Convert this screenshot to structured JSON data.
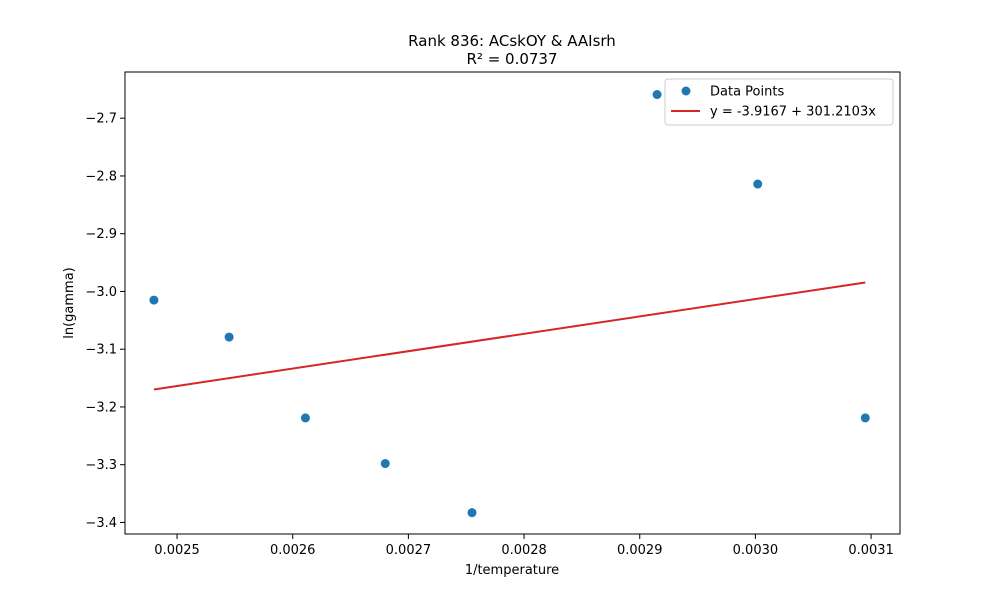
{
  "chart_data": {
    "type": "scatter",
    "title": "Rank 836: ACskOY & AAIsrh",
    "subtitle": "R² = 0.0737",
    "xlabel": "1/temperature",
    "ylabel": "ln(gamma)",
    "xlim": [
      0.002455,
      0.003125
    ],
    "ylim": [
      -3.42,
      -2.62
    ],
    "xticks": [
      0.0025,
      0.0026,
      0.0027,
      0.0028,
      0.0029,
      0.003,
      0.0031
    ],
    "xtick_labels": [
      "0.0025",
      "0.0026",
      "0.0027",
      "0.0028",
      "0.0029",
      "0.0030",
      "0.0031"
    ],
    "yticks": [
      -3.4,
      -3.3,
      -3.2,
      -3.1,
      -3.0,
      -2.9,
      -2.8,
      -2.7
    ],
    "ytick_labels": [
      "−3.4",
      "−3.3",
      "−3.2",
      "−3.1",
      "−3.0",
      "−2.9",
      "−2.8",
      "−2.7"
    ],
    "grid": false,
    "legend_position": "top-right",
    "series": [
      {
        "name": "Data Points",
        "kind": "scatter",
        "color": "#1f77b4",
        "x": [
          0.00248,
          0.002545,
          0.002611,
          0.00268,
          0.002755,
          0.002915,
          0.003002,
          0.003095
        ],
        "y": [
          -3.015,
          -3.079,
          -3.219,
          -3.298,
          -3.383,
          -2.659,
          -2.814,
          -3.219
        ]
      },
      {
        "name": "y = -3.9167 + 301.2103x",
        "kind": "line",
        "color": "#d62728",
        "intercept": -3.9167,
        "slope": 301.2103,
        "x_range": [
          0.00248,
          0.003095
        ]
      }
    ]
  }
}
